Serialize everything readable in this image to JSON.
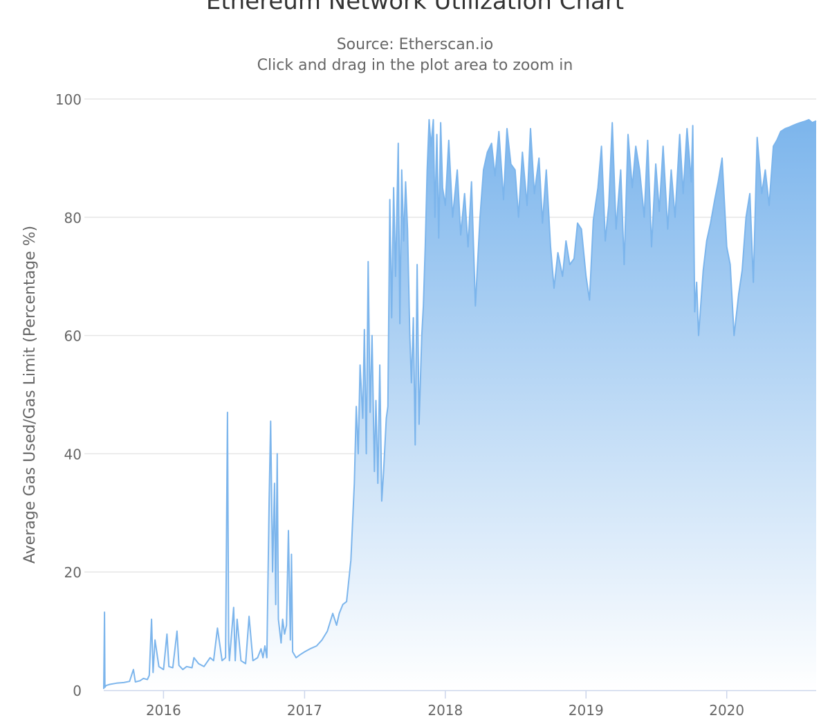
{
  "chart_data": {
    "type": "area",
    "title": "Ethereum Network Utilization Chart",
    "subtitle": "Source: Etherscan.io",
    "subtitle2": "Click and drag in the plot area to zoom in",
    "xlabel": "",
    "ylabel": "Average Gas Used/Gas Limit (Percentage %)",
    "x_tick_labels": [
      "2016",
      "2017",
      "2018",
      "2019",
      "2020"
    ],
    "y_tick_labels": [
      "0",
      "20",
      "40",
      "60",
      "80",
      "100"
    ],
    "xlim": [
      "2015-07-30",
      "2020-08-20"
    ],
    "ylim": [
      0,
      100
    ],
    "grid": "horizontal",
    "legend": "none",
    "colors": {
      "line": "#7cb5ec",
      "fill_top": "#7cb5ec",
      "fill_bottom": "#ffffff",
      "grid": "#e6e6e6",
      "axis": "#ccd6eb",
      "label": "#666666"
    },
    "series": [
      {
        "x": [
          "2015-07-30",
          "2015-08-01",
          "2015-08-02",
          "2015-08-05",
          "2015-08-15",
          "2015-09-01",
          "2015-09-20",
          "2015-10-05",
          "2015-10-15",
          "2015-10-20",
          "2015-11-01",
          "2015-11-10",
          "2015-11-20",
          "2015-11-25",
          "2015-12-01",
          "2015-12-05",
          "2015-12-10",
          "2015-12-20",
          "2016-01-01",
          "2016-01-10",
          "2016-01-15",
          "2016-01-25",
          "2016-02-05",
          "2016-02-10",
          "2016-02-20",
          "2016-03-01",
          "2016-03-15",
          "2016-03-20",
          "2016-04-01",
          "2016-04-15",
          "2016-05-01",
          "2016-05-10",
          "2016-05-20",
          "2016-06-01",
          "2016-06-10",
          "2016-06-15",
          "2016-06-18",
          "2016-06-20",
          "2016-07-01",
          "2016-07-05",
          "2016-07-10",
          "2016-07-20",
          "2016-08-01",
          "2016-08-10",
          "2016-08-20",
          "2016-09-01",
          "2016-09-10",
          "2016-09-15",
          "2016-09-20",
          "2016-09-25",
          "2016-10-01",
          "2016-10-05",
          "2016-10-10",
          "2016-10-15",
          "2016-10-18",
          "2016-10-22",
          "2016-10-25",
          "2016-11-01",
          "2016-11-05",
          "2016-11-10",
          "2016-11-15",
          "2016-11-20",
          "2016-11-25",
          "2016-11-28",
          "2016-12-01",
          "2016-12-10",
          "2016-12-20",
          "2017-01-01",
          "2017-01-15",
          "2017-02-01",
          "2017-02-15",
          "2017-03-01",
          "2017-03-15",
          "2017-03-25",
          "2017-04-01",
          "2017-04-10",
          "2017-04-20",
          "2017-05-01",
          "2017-05-10",
          "2017-05-15",
          "2017-05-20",
          "2017-05-25",
          "2017-06-01",
          "2017-06-05",
          "2017-06-10",
          "2017-06-15",
          "2017-06-20",
          "2017-06-25",
          "2017-07-01",
          "2017-07-05",
          "2017-07-10",
          "2017-07-15",
          "2017-07-20",
          "2017-07-25",
          "2017-08-01",
          "2017-08-05",
          "2017-08-10",
          "2017-08-15",
          "2017-08-20",
          "2017-08-25",
          "2017-09-01",
          "2017-09-05",
          "2017-09-10",
          "2017-09-15",
          "2017-09-20",
          "2017-09-25",
          "2017-10-01",
          "2017-10-05",
          "2017-10-10",
          "2017-10-15",
          "2017-10-20",
          "2017-10-25",
          "2017-11-01",
          "2017-11-05",
          "2017-11-10",
          "2017-11-15",
          "2017-11-20",
          "2017-11-25",
          "2017-12-01",
          "2017-12-05",
          "2017-12-10",
          "2017-12-15",
          "2017-12-20",
          "2017-12-25",
          "2018-01-01",
          "2018-01-10",
          "2018-01-20",
          "2018-02-01",
          "2018-02-10",
          "2018-02-20",
          "2018-03-01",
          "2018-03-10",
          "2018-03-20",
          "2018-04-01",
          "2018-04-10",
          "2018-04-20",
          "2018-05-01",
          "2018-05-10",
          "2018-05-20",
          "2018-06-01",
          "2018-06-10",
          "2018-06-20",
          "2018-07-01",
          "2018-07-10",
          "2018-07-20",
          "2018-08-01",
          "2018-08-10",
          "2018-08-20",
          "2018-09-01",
          "2018-09-10",
          "2018-09-20",
          "2018-10-01",
          "2018-10-10",
          "2018-10-20",
          "2018-11-01",
          "2018-11-10",
          "2018-11-20",
          "2018-12-01",
          "2018-12-10",
          "2018-12-20",
          "2019-01-01",
          "2019-01-10",
          "2019-01-20",
          "2019-02-01",
          "2019-02-10",
          "2019-02-20",
          "2019-03-01",
          "2019-03-10",
          "2019-03-20",
          "2019-04-01",
          "2019-04-10",
          "2019-04-20",
          "2019-05-01",
          "2019-05-10",
          "2019-05-20",
          "2019-06-01",
          "2019-06-10",
          "2019-06-20",
          "2019-07-01",
          "2019-07-10",
          "2019-07-20",
          "2019-08-01",
          "2019-08-10",
          "2019-08-20",
          "2019-09-01",
          "2019-09-10",
          "2019-09-20",
          "2019-10-01",
          "2019-10-05",
          "2019-10-10",
          "2019-10-15",
          "2019-10-20",
          "2019-11-01",
          "2019-11-10",
          "2019-11-20",
          "2019-12-01",
          "2019-12-10",
          "2019-12-20",
          "2020-01-01",
          "2020-01-10",
          "2020-01-20",
          "2020-02-01",
          "2020-02-10",
          "2020-02-20",
          "2020-03-01",
          "2020-03-10",
          "2020-03-20",
          "2020-04-01",
          "2020-04-10",
          "2020-04-20",
          "2020-05-01",
          "2020-05-10",
          "2020-05-20",
          "2020-06-01",
          "2020-06-10",
          "2020-06-20",
          "2020-07-01",
          "2020-07-10",
          "2020-07-20",
          "2020-08-01",
          "2020-08-10",
          "2020-08-20"
        ],
        "values": [
          0.2,
          13.2,
          0.5,
          0.8,
          1.0,
          1.2,
          1.3,
          1.5,
          3.5,
          1.4,
          1.6,
          2.0,
          1.8,
          2.5,
          12.0,
          3.0,
          8.5,
          4.0,
          3.5,
          9.5,
          4.0,
          3.8,
          10.0,
          4.2,
          3.5,
          4.0,
          3.8,
          5.5,
          4.5,
          4.0,
          5.5,
          5.0,
          10.5,
          5.0,
          5.5,
          47.0,
          8.0,
          5.0,
          14.0,
          5.0,
          12.0,
          5.0,
          4.5,
          12.5,
          5.0,
          5.5,
          7.0,
          5.5,
          7.5,
          5.5,
          32.0,
          45.5,
          20.0,
          35.0,
          14.5,
          40.0,
          12.0,
          8.0,
          12.0,
          9.5,
          11.0,
          27.0,
          8.5,
          23.0,
          6.5,
          5.5,
          6.0,
          6.5,
          7.0,
          7.5,
          8.5,
          10.0,
          13.0,
          11.0,
          13.0,
          14.5,
          15.0,
          22.0,
          35.0,
          48.0,
          40.0,
          55.0,
          46.0,
          61.0,
          40.0,
          72.5,
          47.0,
          60.0,
          37.0,
          49.0,
          35.0,
          55.0,
          32.0,
          37.0,
          46.0,
          48.0,
          83.0,
          63.0,
          85.0,
          70.0,
          92.5,
          62.0,
          88.0,
          76.0,
          86.0,
          78.0,
          60.0,
          52.0,
          63.0,
          41.5,
          72.0,
          45.0,
          60.0,
          65.0,
          75.0,
          88.0,
          96.5,
          92.0,
          96.5,
          80.0,
          94.0,
          76.5,
          96.0,
          85.0,
          82.0,
          93.0,
          80.0,
          88.0,
          77.0,
          84.0,
          75.0,
          86.0,
          65.0,
          80.0,
          88.0,
          91.0,
          92.5,
          87.0,
          94.5,
          83.0,
          95.0,
          89.0,
          88.0,
          80.0,
          91.0,
          82.0,
          95.0,
          84.0,
          90.0,
          79.0,
          88.0,
          75.0,
          68.0,
          74.0,
          70.0,
          76.0,
          72.0,
          73.0,
          79.0,
          78.0,
          70.0,
          66.0,
          79.5,
          85.0,
          92.0,
          76.0,
          82.0,
          96.0,
          78.0,
          88.0,
          72.0,
          94.0,
          85.0,
          92.0,
          88.0,
          80.0,
          93.0,
          75.0,
          89.0,
          81.0,
          92.0,
          78.0,
          88.0,
          80.0,
          94.0,
          84.0,
          95.0,
          86.0,
          95.5,
          64.0,
          69.0,
          60.0,
          71.0,
          76.0,
          79.0,
          83.0,
          86.0,
          90.0,
          75.0,
          72.0,
          60.0,
          67.0,
          71.0,
          80.0,
          84.0,
          69.0,
          93.5,
          84.0,
          88.0,
          82.0,
          92.0,
          93.0,
          94.5,
          95.0,
          95.2,
          95.5,
          95.8,
          96.0,
          96.2,
          96.5,
          96.0,
          96.3
        ]
      }
    ]
  }
}
